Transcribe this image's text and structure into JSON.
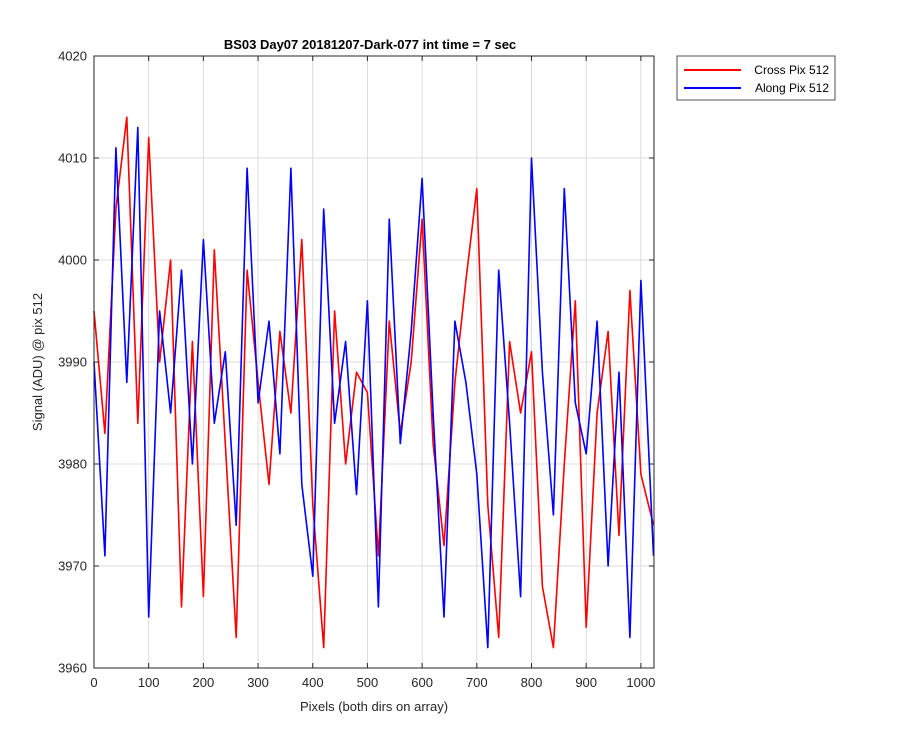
{
  "chart_data": {
    "type": "line",
    "title": "BS03 Day07 20181207-Dark-077 int time = 7 sec",
    "xlabel": "Pixels (both dirs on array)",
    "ylabel": "Signal (ADU) @ pix 512",
    "xlim": [
      0,
      1024
    ],
    "ylim": [
      3960,
      4020
    ],
    "xticks": [
      0,
      100,
      200,
      300,
      400,
      500,
      600,
      700,
      800,
      900,
      1000
    ],
    "yticks": [
      3960,
      3970,
      3980,
      3990,
      4000,
      4010,
      4020
    ],
    "grid": true,
    "legend_position": "outside-top-right",
    "series": [
      {
        "name": "Cross Pix 512",
        "color": "#ff0000",
        "x": [
          0,
          20,
          40,
          60,
          80,
          100,
          120,
          140,
          160,
          180,
          200,
          220,
          240,
          260,
          280,
          300,
          320,
          340,
          360,
          380,
          400,
          420,
          440,
          460,
          480,
          500,
          520,
          540,
          560,
          580,
          600,
          620,
          640,
          660,
          680,
          700,
          720,
          740,
          760,
          780,
          800,
          820,
          840,
          860,
          880,
          900,
          920,
          940,
          960,
          980,
          1000,
          1023
        ],
        "y": [
          3995,
          3983,
          4005,
          4014,
          3984,
          4012,
          3990,
          4000,
          3966,
          3992,
          3967,
          4001,
          3982,
          3963,
          3999,
          3988,
          3978,
          3993,
          3985,
          4002,
          3976,
          3962,
          3995,
          3980,
          3989,
          3987,
          3971,
          3994,
          3983,
          3990,
          4004,
          3982,
          3972,
          3988,
          3998,
          4007,
          3976,
          3963,
          3992,
          3985,
          3991,
          3968,
          3962,
          3980,
          3996,
          3964,
          3985,
          3993,
          3973,
          3997,
          3979,
          3974
        ]
      },
      {
        "name": "Along Pix 512",
        "color": "#0000ff",
        "x": [
          0,
          20,
          40,
          60,
          80,
          100,
          120,
          140,
          160,
          180,
          200,
          220,
          240,
          260,
          280,
          300,
          320,
          340,
          360,
          380,
          400,
          420,
          440,
          460,
          480,
          500,
          520,
          540,
          560,
          580,
          600,
          620,
          640,
          660,
          680,
          700,
          720,
          740,
          760,
          780,
          800,
          820,
          840,
          860,
          880,
          900,
          920,
          940,
          960,
          980,
          1000,
          1023
        ],
        "y": [
          3990,
          3971,
          4011,
          3988,
          4013,
          3965,
          3995,
          3985,
          3999,
          3980,
          4002,
          3984,
          3991,
          3974,
          4009,
          3986,
          3994,
          3981,
          4009,
          3978,
          3969,
          4005,
          3984,
          3992,
          3977,
          3996,
          3966,
          4004,
          3982,
          3993,
          4008,
          3985,
          3965,
          3994,
          3988,
          3979,
          3962,
          3999,
          3984,
          3967,
          4010,
          3989,
          3975,
          4007,
          3986,
          3981,
          3994,
          3970,
          3989,
          3963,
          3998,
          3971
        ]
      }
    ]
  }
}
